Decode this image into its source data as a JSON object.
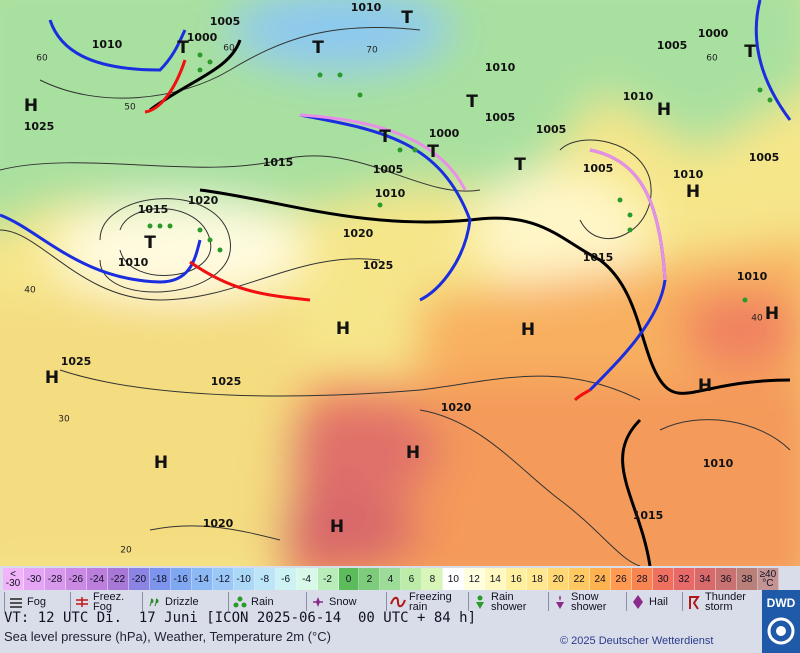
{
  "map": {
    "isobar_labels": [
      1005,
      1000,
      1010,
      1010,
      1010,
      1005,
      1000,
      1010,
      1005,
      1005,
      1000,
      1005,
      1010,
      1005,
      1015,
      1005,
      1010,
      1015,
      1020,
      1020,
      1025,
      1015,
      1010,
      1010,
      1025,
      1025,
      1020,
      1010,
      1015,
      1020,
      1025
    ],
    "highs": [
      "H",
      "H",
      "H",
      "H",
      "H",
      "H",
      "H",
      "H",
      "H",
      "H",
      "H"
    ],
    "lows": [
      "T",
      "T",
      "T",
      "T",
      "T",
      "T",
      "T",
      "T",
      "T"
    ],
    "latitudes": [
      60,
      50,
      40,
      30,
      20,
      60,
      70,
      60,
      40
    ]
  },
  "scale": {
    "low_symbol": "<",
    "low_value": "-30",
    "low_color": "#f0b4f8",
    "values": [
      -30,
      -28,
      -26,
      -24,
      -22,
      -20,
      -18,
      -16,
      -14,
      -12,
      -10,
      -8,
      -6,
      -4,
      -2,
      0,
      2,
      4,
      6,
      8,
      10,
      12,
      14,
      16,
      18,
      20,
      22,
      24,
      26,
      28,
      30,
      32,
      34,
      36,
      38
    ],
    "colors": [
      "#e4a6f4",
      "#d898ec",
      "#ca8ae4",
      "#bc7edc",
      "#a878d6",
      "#8c84e4",
      "#7c94ec",
      "#80a8f2",
      "#8cb8f4",
      "#9cc8f8",
      "#acd8f8",
      "#bce6f8",
      "#ccf2f4",
      "#d8f8e8",
      "#b8ecb8",
      "#5cbc5c",
      "#7ccc7c",
      "#9cdc98",
      "#bceca8",
      "#d8f6b8",
      "#ffffff",
      "#ffffe0",
      "#fff8c0",
      "#fff0a0",
      "#ffe890",
      "#ffd874",
      "#ffc860",
      "#ffb250",
      "#ff9a50",
      "#f88452",
      "#f07060",
      "#e86a68",
      "#d86a6a",
      "#c87272",
      "#b88078"
    ],
    "high_symbol": "≥40",
    "high_unit": "°C",
    "high_color": "#c49494"
  },
  "legend": [
    "Fog",
    "Freez. Fog",
    "Drizzle",
    "Rain",
    "Snow",
    "Freezing rain",
    "Rain shower",
    "Snow shower",
    "Hail",
    "Thunder storm"
  ],
  "footer": {
    "valid_time": "VT: 12 UTC Di.  17 Juni [ICON 2025-06-14  00 UTC + 84 h]",
    "description": "Sea level pressure (hPa), Weather, Temperature 2m (°C)",
    "copyright": "© 2025 Deutscher Wetterdienst",
    "logo": "DWD"
  }
}
